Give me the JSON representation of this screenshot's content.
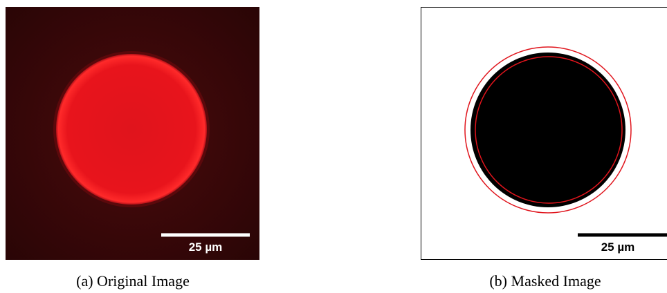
{
  "figure": {
    "panels": [
      {
        "scale_bar_label": "25 µm",
        "caption": "(a) Original Image"
      },
      {
        "scale_bar_label": "25 µm",
        "caption": "(b) Masked Image"
      }
    ]
  }
}
